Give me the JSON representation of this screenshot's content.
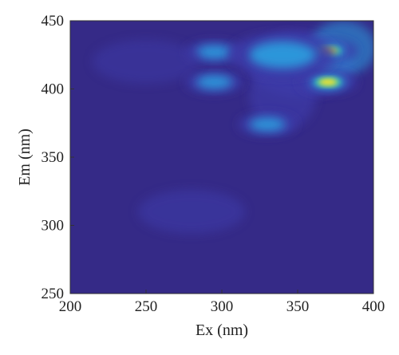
{
  "chart_data": {
    "type": "heatmap",
    "title": "",
    "xlabel": "Ex (nm)",
    "ylabel": "Em (nm)",
    "xlim": [
      200,
      400
    ],
    "ylim": [
      250,
      450
    ],
    "x_ticks": [
      "200",
      "250",
      "300",
      "350",
      "400"
    ],
    "y_ticks": [
      "450",
      "400",
      "350",
      "300",
      "250"
    ],
    "x_tick_values": [
      200,
      250,
      300,
      350,
      400
    ],
    "y_tick_values": [
      450,
      400,
      350,
      300,
      250
    ],
    "colormap": "parula",
    "colors": {
      "background": "#352a87",
      "low": "#3d3ba8",
      "mid": "#2ba0e0",
      "high": "#38c9b0",
      "peak": "#f9e226"
    },
    "grid": false,
    "legend": "none",
    "features": [
      {
        "ex": 370,
        "em": 405,
        "intensity": 1.0,
        "shape": "peak"
      },
      {
        "ex": 370,
        "em": 428,
        "intensity": 0.85,
        "shape": "peak"
      },
      {
        "ex": 295,
        "em": 405,
        "intensity": 0.45,
        "shape": "peak"
      },
      {
        "ex": 295,
        "em": 427,
        "intensity": 0.25,
        "shape": "peak"
      },
      {
        "ex": 330,
        "em": 374,
        "intensity": 0.4,
        "shape": "peak"
      },
      {
        "ex": 340,
        "em": 425,
        "intensity": 0.45,
        "shape": "diffuse"
      },
      {
        "ex": 280,
        "em": 310,
        "intensity": 0.12,
        "shape": "diffuse"
      },
      {
        "ex": 250,
        "em": 420,
        "intensity": 0.08,
        "shape": "diffuse"
      }
    ]
  }
}
